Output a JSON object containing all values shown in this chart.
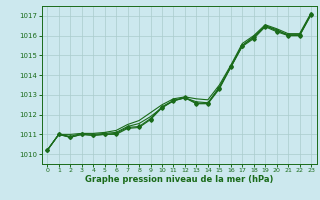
{
  "background_color": "#cce8ee",
  "grid_color": "#aacccc",
  "line_color": "#1a6b1a",
  "xlabel": "Graphe pression niveau de la mer (hPa)",
  "xlim": [
    -0.5,
    23.5
  ],
  "ylim": [
    1009.5,
    1017.5
  ],
  "yticks": [
    1010,
    1011,
    1012,
    1013,
    1014,
    1015,
    1016,
    1017
  ],
  "xticks": [
    0,
    1,
    2,
    3,
    4,
    5,
    6,
    7,
    8,
    9,
    10,
    11,
    12,
    13,
    14,
    15,
    16,
    17,
    18,
    19,
    20,
    21,
    22,
    23
  ],
  "x": [
    0,
    1,
    2,
    3,
    4,
    5,
    6,
    7,
    8,
    9,
    10,
    11,
    12,
    13,
    14,
    15,
    16,
    17,
    18,
    19,
    20,
    21,
    22,
    23
  ],
  "line1": [
    1010.2,
    1011.0,
    1011.0,
    1011.05,
    1011.05,
    1011.1,
    1011.2,
    1011.5,
    1011.7,
    1012.1,
    1012.5,
    1012.8,
    1012.9,
    1012.8,
    1012.75,
    1013.5,
    1014.5,
    1015.6,
    1016.0,
    1016.55,
    1016.35,
    1016.1,
    1016.1,
    1017.15
  ],
  "line2": [
    1010.2,
    1011.0,
    1010.9,
    1011.05,
    1011.0,
    1011.05,
    1011.1,
    1011.4,
    1011.55,
    1011.9,
    1012.35,
    1012.7,
    1012.85,
    1012.65,
    1012.6,
    1013.4,
    1014.4,
    1015.5,
    1015.9,
    1016.5,
    1016.3,
    1016.0,
    1016.0,
    1017.1
  ],
  "line3": [
    1010.2,
    1011.0,
    1010.85,
    1011.0,
    1010.95,
    1011.0,
    1011.05,
    1011.35,
    1011.4,
    1011.8,
    1012.4,
    1012.72,
    1012.87,
    1012.58,
    1012.57,
    1013.35,
    1014.45,
    1015.5,
    1015.95,
    1016.5,
    1016.25,
    1016.05,
    1016.05,
    1017.1
  ],
  "line4": [
    1010.2,
    1011.0,
    1010.85,
    1011.0,
    1010.95,
    1011.0,
    1011.0,
    1011.3,
    1011.35,
    1011.75,
    1012.35,
    1012.7,
    1012.85,
    1012.55,
    1012.55,
    1013.3,
    1014.4,
    1015.45,
    1015.85,
    1016.45,
    1016.2,
    1016.0,
    1016.0,
    1017.05
  ],
  "figsize": [
    3.2,
    2.0
  ],
  "dpi": 100
}
